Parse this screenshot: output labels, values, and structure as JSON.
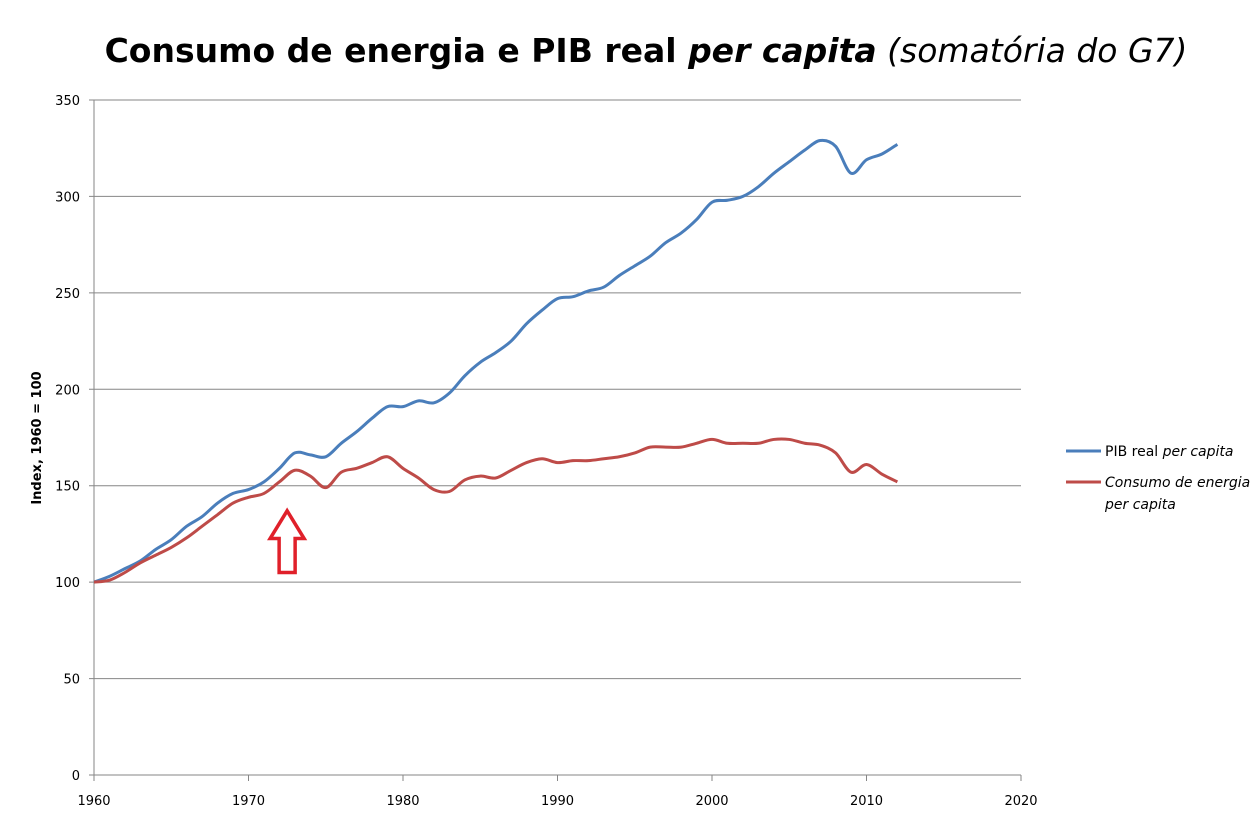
{
  "chart_data": {
    "type": "line",
    "title": {
      "part1": "Consumo de energia e PIB real ",
      "part2": "per capita",
      "part3": " (somatória do G7)"
    },
    "xlabel": "",
    "ylabel": "Index, 1960 = 100",
    "xlim": [
      1960,
      2020
    ],
    "ylim": [
      0,
      350
    ],
    "xticks": [
      1960,
      1970,
      1980,
      1990,
      2000,
      2010,
      2020
    ],
    "yticks": [
      0,
      50,
      100,
      150,
      200,
      250,
      300,
      350
    ],
    "grid": "horizontal",
    "legend_position": "right",
    "x": [
      1960,
      1961,
      1962,
      1963,
      1964,
      1965,
      1966,
      1967,
      1968,
      1969,
      1970,
      1971,
      1972,
      1973,
      1974,
      1975,
      1976,
      1977,
      1978,
      1979,
      1980,
      1981,
      1982,
      1983,
      1984,
      1985,
      1986,
      1987,
      1988,
      1989,
      1990,
      1991,
      1992,
      1993,
      1994,
      1995,
      1996,
      1997,
      1998,
      1999,
      2000,
      2001,
      2002,
      2003,
      2004,
      2005,
      2006,
      2007,
      2008,
      2009,
      2010,
      2011,
      2012
    ],
    "series": [
      {
        "name": "PIB real per capita",
        "legend_plain": "PIB real ",
        "legend_italic": "per capita",
        "color": "#4a7ebb",
        "values": [
          100,
          103,
          107,
          111,
          117,
          122,
          129,
          134,
          141,
          146,
          148,
          152,
          159,
          167,
          166,
          165,
          172,
          178,
          185,
          191,
          191,
          194,
          193,
          198,
          207,
          214,
          219,
          225,
          234,
          241,
          247,
          248,
          251,
          253,
          259,
          264,
          269,
          276,
          281,
          288,
          297,
          298,
          300,
          305,
          312,
          318,
          324,
          329,
          326,
          312,
          319,
          322,
          327
        ]
      },
      {
        "name": "Consumo de energia per capita",
        "legend_line1": "Consumo de energia",
        "legend_line2": "per capita",
        "color": "#be4b48",
        "values": [
          100,
          101,
          105,
          110,
          114,
          118,
          123,
          129,
          135,
          141,
          144,
          146,
          152,
          158,
          155,
          149,
          157,
          159,
          162,
          165,
          159,
          154,
          148,
          147,
          153,
          155,
          154,
          158,
          162,
          164,
          162,
          163,
          163,
          164,
          165,
          167,
          170,
          170,
          170,
          172,
          174,
          172,
          172,
          172,
          174,
          174,
          172,
          171,
          167,
          157,
          161,
          156,
          152
        ]
      }
    ],
    "annotations": [
      {
        "type": "arrow-up",
        "x": 1972.5,
        "y_from": 105,
        "y_to": 137,
        "color": "#e0202a"
      }
    ]
  }
}
